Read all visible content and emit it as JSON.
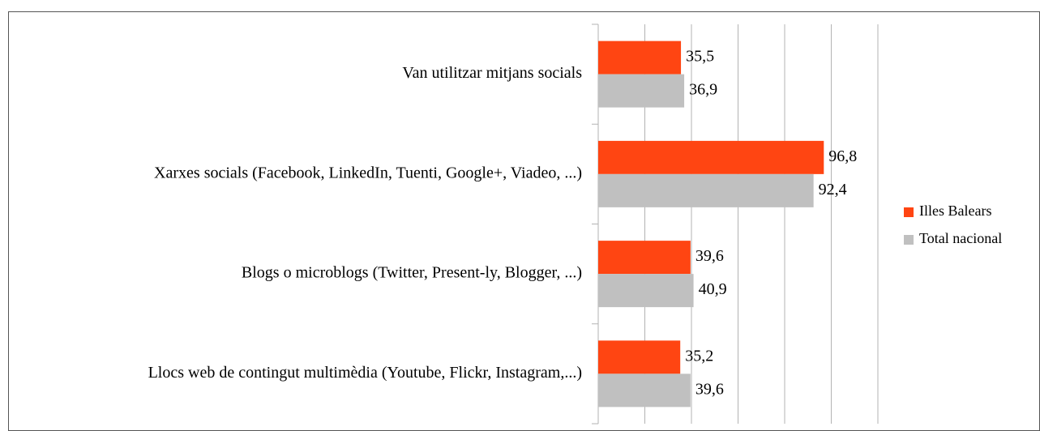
{
  "chart_data": {
    "type": "bar",
    "orientation": "horizontal",
    "categories": [
      "Van utilitzar mitjans socials",
      "Xarxes socials (Facebook, LinkedIn, Tuenti, Google+, Viadeo, ...)",
      "Blogs o microblogs (Twitter, Present-ly, Blogger, ...)",
      "Llocs web de contingut multimèdia (Youtube, Flickr, Instagram,...)"
    ],
    "series": [
      {
        "name": "Illes Balears",
        "color": "#ff4512",
        "values": [
          35.5,
          96.8,
          39.6,
          35.2
        ],
        "value_labels": [
          "35,5",
          "96,8",
          "39,6",
          "35,2"
        ]
      },
      {
        "name": "Total nacional",
        "color": "#c0c0c0",
        "values": [
          36.9,
          92.4,
          40.9,
          39.6
        ],
        "value_labels": [
          "36,9",
          "92,4",
          "40,9",
          "39,6"
        ]
      }
    ],
    "xlim": [
      0,
      120
    ],
    "xticks": [
      0,
      20,
      40,
      60,
      80,
      100,
      120
    ],
    "grid": true,
    "legend": "right"
  }
}
